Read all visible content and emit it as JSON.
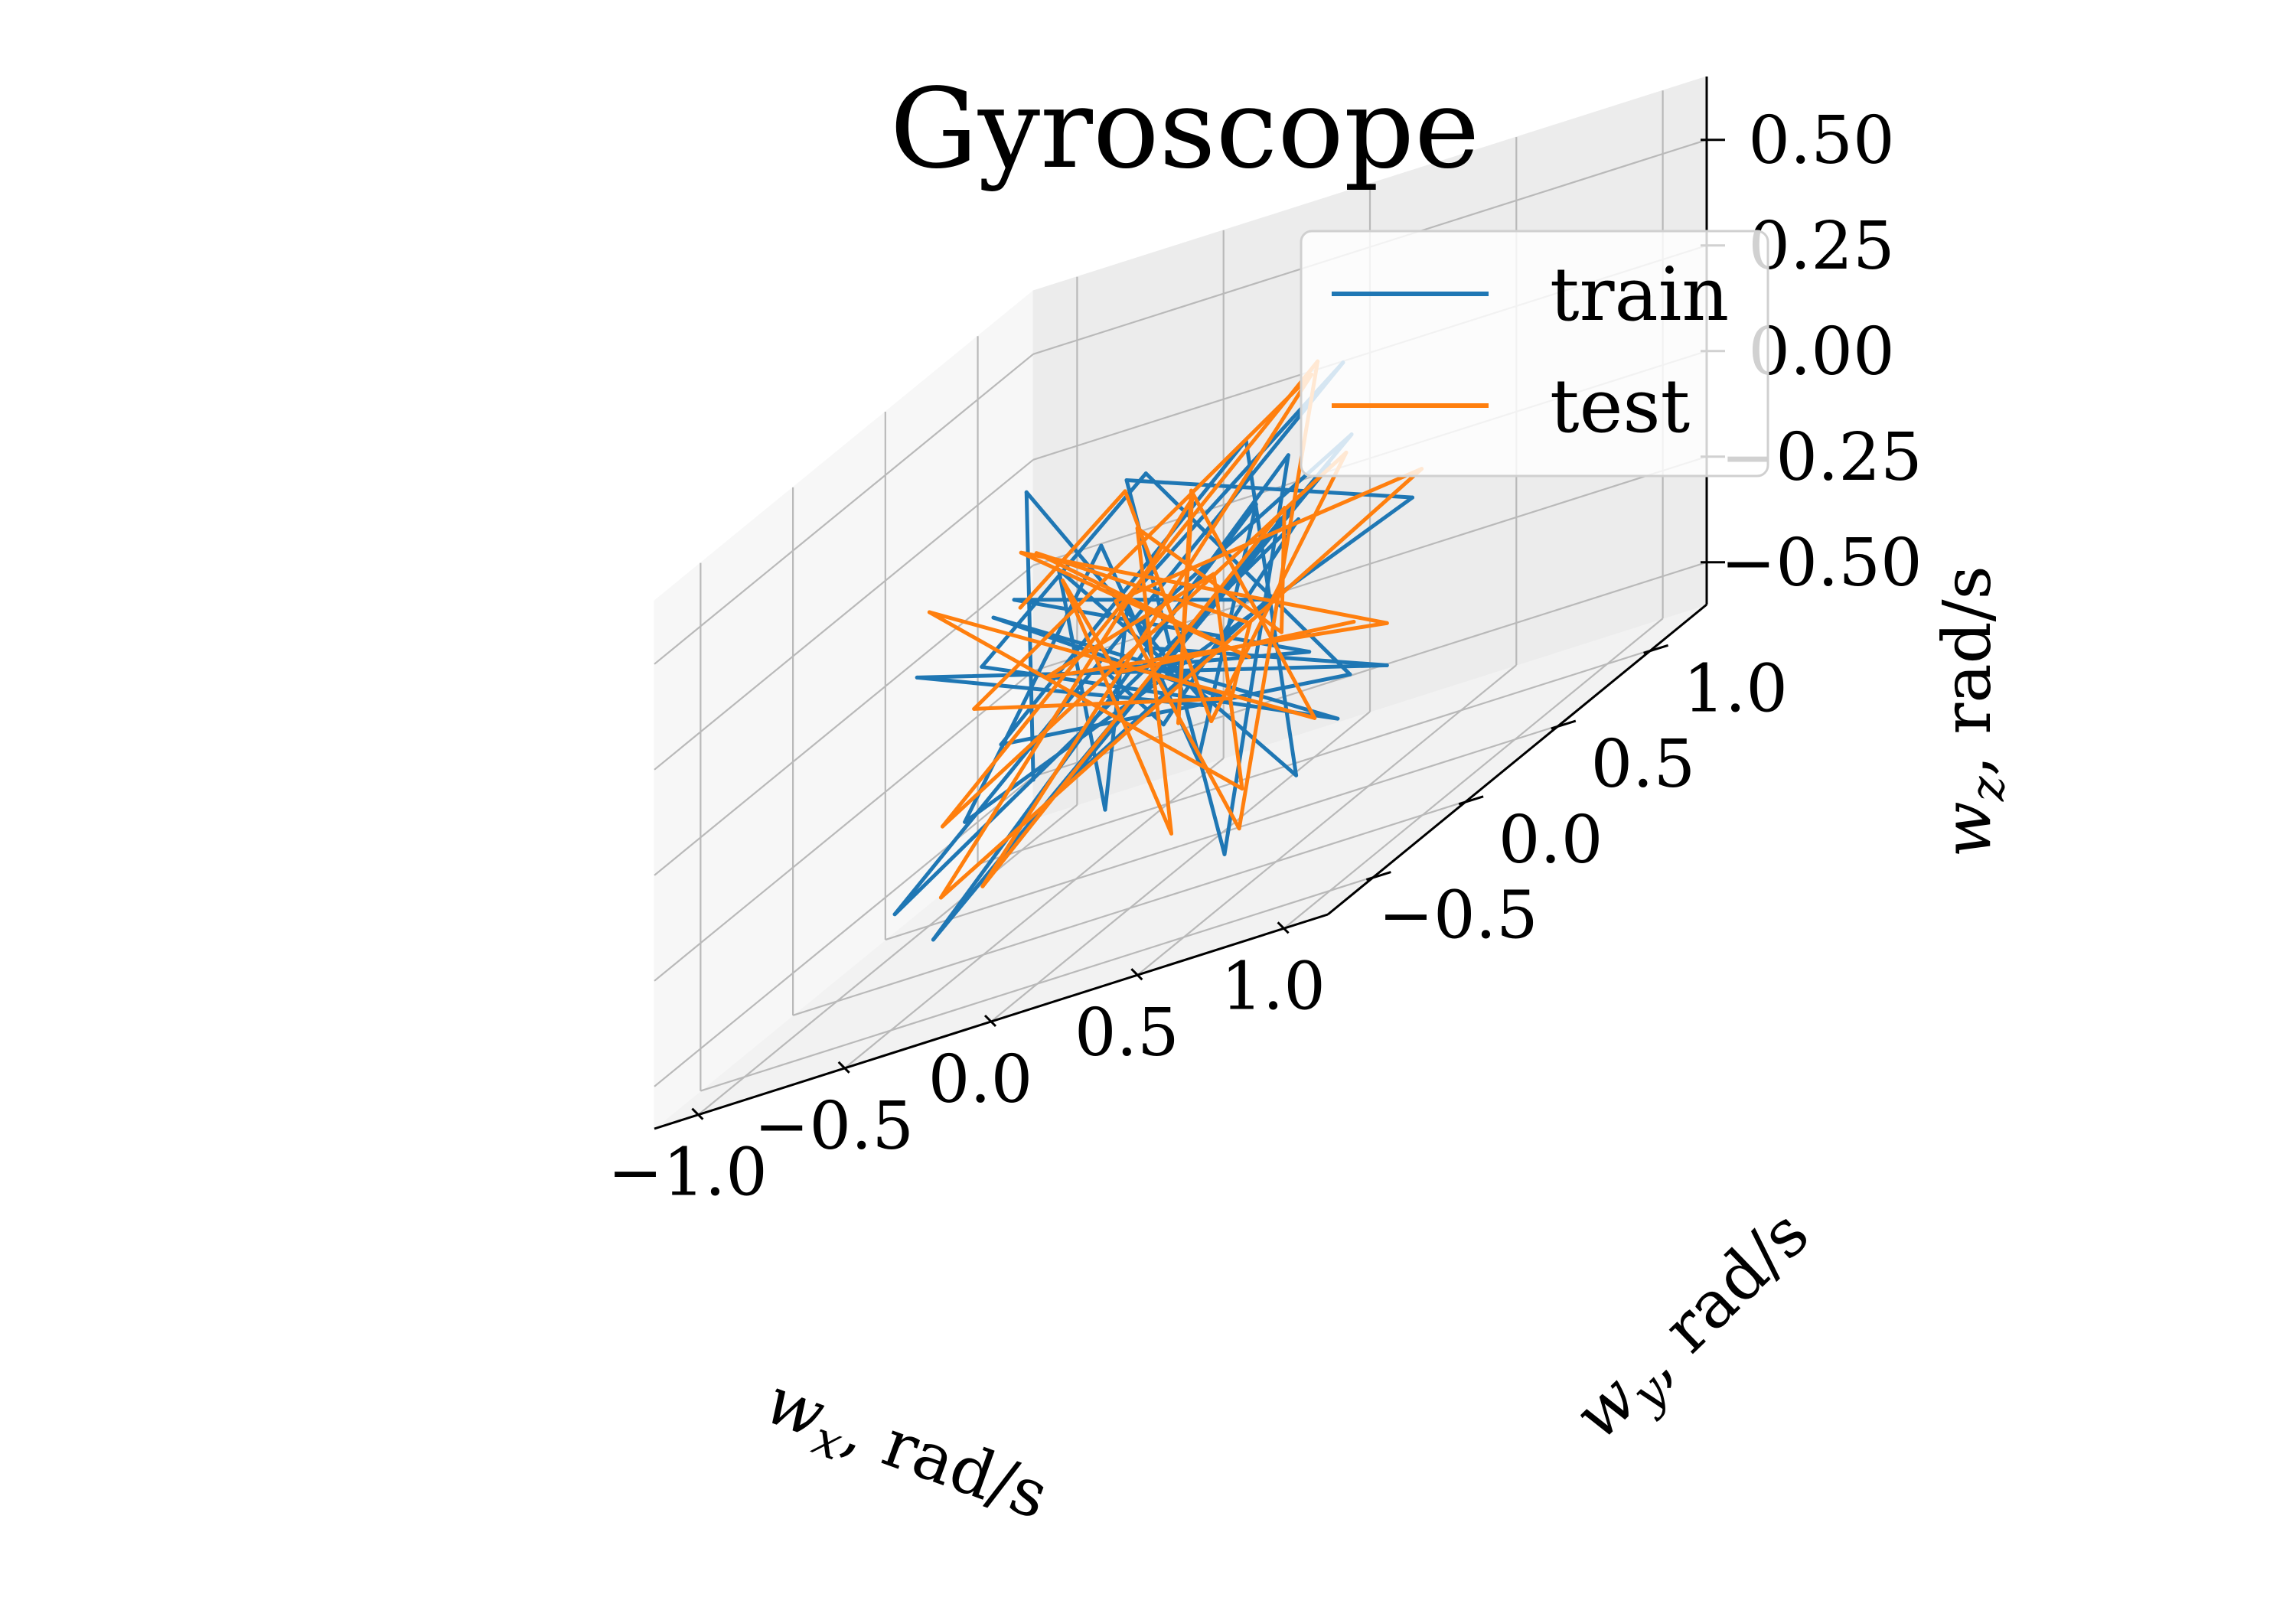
{
  "chart_data": {
    "type": "line",
    "projection": "3d",
    "title": "Gyroscope",
    "xlabel": "w_x, rad/s",
    "ylabel": "w_y, rad/s",
    "zlabel": "w_z, rad/s",
    "xlim": [
      -1.15,
      1.15
    ],
    "ylim": [
      -0.75,
      1.3
    ],
    "zlim": [
      -0.6,
      0.65
    ],
    "xticks": [
      -1.0,
      -0.5,
      0.0,
      0.5,
      1.0
    ],
    "xtick_labels": [
      "−1.0",
      "−0.5",
      "0.0",
      "0.5",
      "1.0"
    ],
    "yticks": [
      -0.5,
      0.0,
      0.5,
      1.0
    ],
    "ytick_labels": [
      "−0.5",
      "0.0",
      "0.5",
      "1.0"
    ],
    "zticks": [
      -0.5,
      -0.25,
      0.0,
      0.25,
      0.5
    ],
    "ztick_labels": [
      "−0.50",
      "−0.25",
      "0.00",
      "0.25",
      "0.50"
    ],
    "grid": true,
    "legend_position": "top-right",
    "series": [
      {
        "name": "train",
        "color": "#1f77b4",
        "points": [
          [
            -0.55,
            0.35,
            -0.3
          ],
          [
            -0.1,
            -0.4,
            0.55
          ],
          [
            0.2,
            0.1,
            -0.2
          ],
          [
            -0.6,
            -0.2,
            0.15
          ],
          [
            0.5,
            0.6,
            -0.35
          ],
          [
            0.35,
            -0.45,
            0.1
          ],
          [
            -0.3,
            0.55,
            -0.05
          ],
          [
            0.6,
            0.25,
            0.3
          ],
          [
            -0.45,
            -0.35,
            -0.45
          ],
          [
            0.1,
            0.7,
            0.2
          ],
          [
            0.45,
            -0.2,
            -0.5
          ],
          [
            -0.2,
            0.3,
            0.35
          ],
          [
            0.65,
            0.5,
            0.05
          ],
          [
            -0.5,
            -0.1,
            -0.25
          ],
          [
            0.25,
            -0.55,
            0.4
          ],
          [
            -0.05,
            0.45,
            -0.4
          ],
          [
            0.4,
            0.05,
            0.25
          ],
          [
            -0.35,
            0.6,
            -0.15
          ],
          [
            0.55,
            -0.35,
            -0.1
          ],
          [
            -0.15,
            -0.5,
            0.3
          ],
          [
            0.3,
            0.65,
            -0.45
          ],
          [
            -0.6,
            0.15,
            0.05
          ],
          [
            0.15,
            -0.15,
            0.45
          ],
          [
            0.5,
            0.4,
            -0.3
          ],
          [
            -0.25,
            -0.3,
            -0.05
          ],
          [
            0.05,
            0.55,
            0.3
          ],
          [
            0.6,
            -0.05,
            -0.4
          ],
          [
            -0.4,
            0.25,
            0.2
          ],
          [
            0.2,
            -0.45,
            -0.25
          ],
          [
            -0.1,
            0.15,
            0.1
          ],
          [
            0.35,
            0.6,
            0.4
          ],
          [
            -0.55,
            -0.4,
            -0.35
          ],
          [
            0.45,
            0.2,
            0.15
          ],
          [
            -0.2,
            0.5,
            -0.3
          ],
          [
            0.1,
            -0.3,
            0.05
          ],
          [
            0.55,
            0.1,
            -0.15
          ],
          [
            -0.3,
            -0.15,
            0.25
          ],
          [
            0.25,
            0.35,
            -0.05
          ],
          [
            -0.05,
            -0.25,
            -0.2
          ],
          [
            0.4,
            0.45,
            0.2
          ]
        ]
      },
      {
        "name": "test",
        "color": "#ff7f0e",
        "points": [
          [
            -0.5,
            0.2,
            0.15
          ],
          [
            0.3,
            -0.5,
            0.5
          ],
          [
            -0.1,
            0.6,
            -0.35
          ],
          [
            0.55,
            0.3,
            0.25
          ],
          [
            -0.45,
            -0.3,
            -0.2
          ],
          [
            0.2,
            0.7,
            0.4
          ],
          [
            0.5,
            -0.2,
            -0.45
          ],
          [
            -0.3,
            0.4,
            0.05
          ],
          [
            0.65,
            0.55,
            0.1
          ],
          [
            -0.55,
            -0.15,
            -0.4
          ],
          [
            0.15,
            0.1,
            0.3
          ],
          [
            0.45,
            -0.45,
            -0.1
          ],
          [
            -0.2,
            0.65,
            0.2
          ],
          [
            0.6,
            0.05,
            -0.3
          ],
          [
            -0.4,
            -0.45,
            0.35
          ],
          [
            0.1,
            0.45,
            -0.5
          ],
          [
            0.35,
            -0.1,
            0.15
          ],
          [
            -0.6,
            0.5,
            -0.1
          ],
          [
            0.5,
            0.6,
            -0.25
          ],
          [
            -0.15,
            -0.35,
            0.4
          ],
          [
            0.25,
            0.25,
            -0.15
          ],
          [
            -0.35,
            0.05,
            0.3
          ],
          [
            0.6,
            -0.3,
            0.05
          ],
          [
            0.0,
            0.55,
            -0.3
          ],
          [
            -0.5,
            -0.05,
            0.0
          ],
          [
            0.4,
            0.35,
            0.45
          ],
          [
            -0.25,
            -0.4,
            -0.35
          ],
          [
            0.15,
            0.6,
            0.1
          ],
          [
            0.55,
            -0.05,
            -0.05
          ],
          [
            -0.1,
            0.2,
            0.25
          ],
          [
            0.3,
            -0.25,
            -0.4
          ],
          [
            -0.45,
            0.35,
            0.15
          ],
          [
            0.05,
            -0.15,
            0.0
          ],
          [
            0.45,
            0.5,
            -0.2
          ]
        ]
      }
    ]
  }
}
